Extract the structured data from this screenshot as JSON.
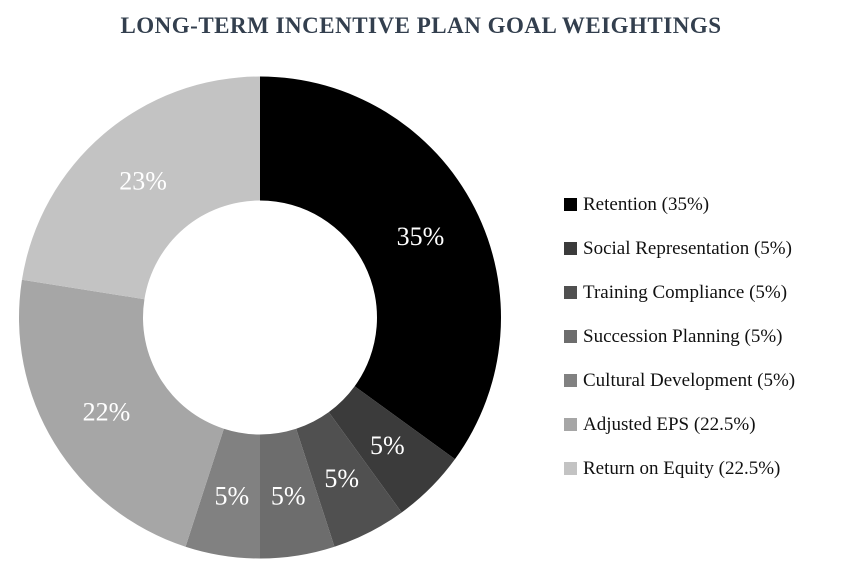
{
  "title": "LONG-TERM INCENTIVE PLAN GOAL WEIGHTINGS",
  "title_color": "#333F4E",
  "chart_data": {
    "type": "pie",
    "subtype": "donut",
    "title": "LONG-TERM INCENTIVE PLAN GOAL WEIGHTINGS",
    "start_angle_deg": 0,
    "direction": "clockwise",
    "donut_hole_ratio": 0.49,
    "legend_position": "right",
    "data_label_color": "#ffffff",
    "series": [
      {
        "name": "Retention",
        "value": 35,
        "display_label": "35%",
        "legend_label": "Retention (35%)",
        "color": "#000000"
      },
      {
        "name": "Social Representation",
        "value": 5,
        "display_label": "5%",
        "legend_label": "Social Representation (5%)",
        "color": "#3b3b3b"
      },
      {
        "name": "Training Compliance",
        "value": 5,
        "display_label": "5%",
        "legend_label": "Training Compliance (5%)",
        "color": "#505050"
      },
      {
        "name": "Succession Planning",
        "value": 5,
        "display_label": "5%",
        "legend_label": "Succession Planning (5%)",
        "color": "#6d6d6d"
      },
      {
        "name": "Cultural Development",
        "value": 5,
        "display_label": "5%",
        "legend_label": "Cultural Development (5%)",
        "color": "#818181"
      },
      {
        "name": "Adjusted EPS",
        "value": 22.5,
        "display_label": "22%",
        "legend_label": "Adjusted EPS (22.5%)",
        "color": "#a6a6a6"
      },
      {
        "name": "Return on Equity",
        "value": 22.5,
        "display_label": "23%",
        "legend_label": "Return on Equity (22.5%)",
        "color": "#c3c3c3"
      }
    ]
  }
}
